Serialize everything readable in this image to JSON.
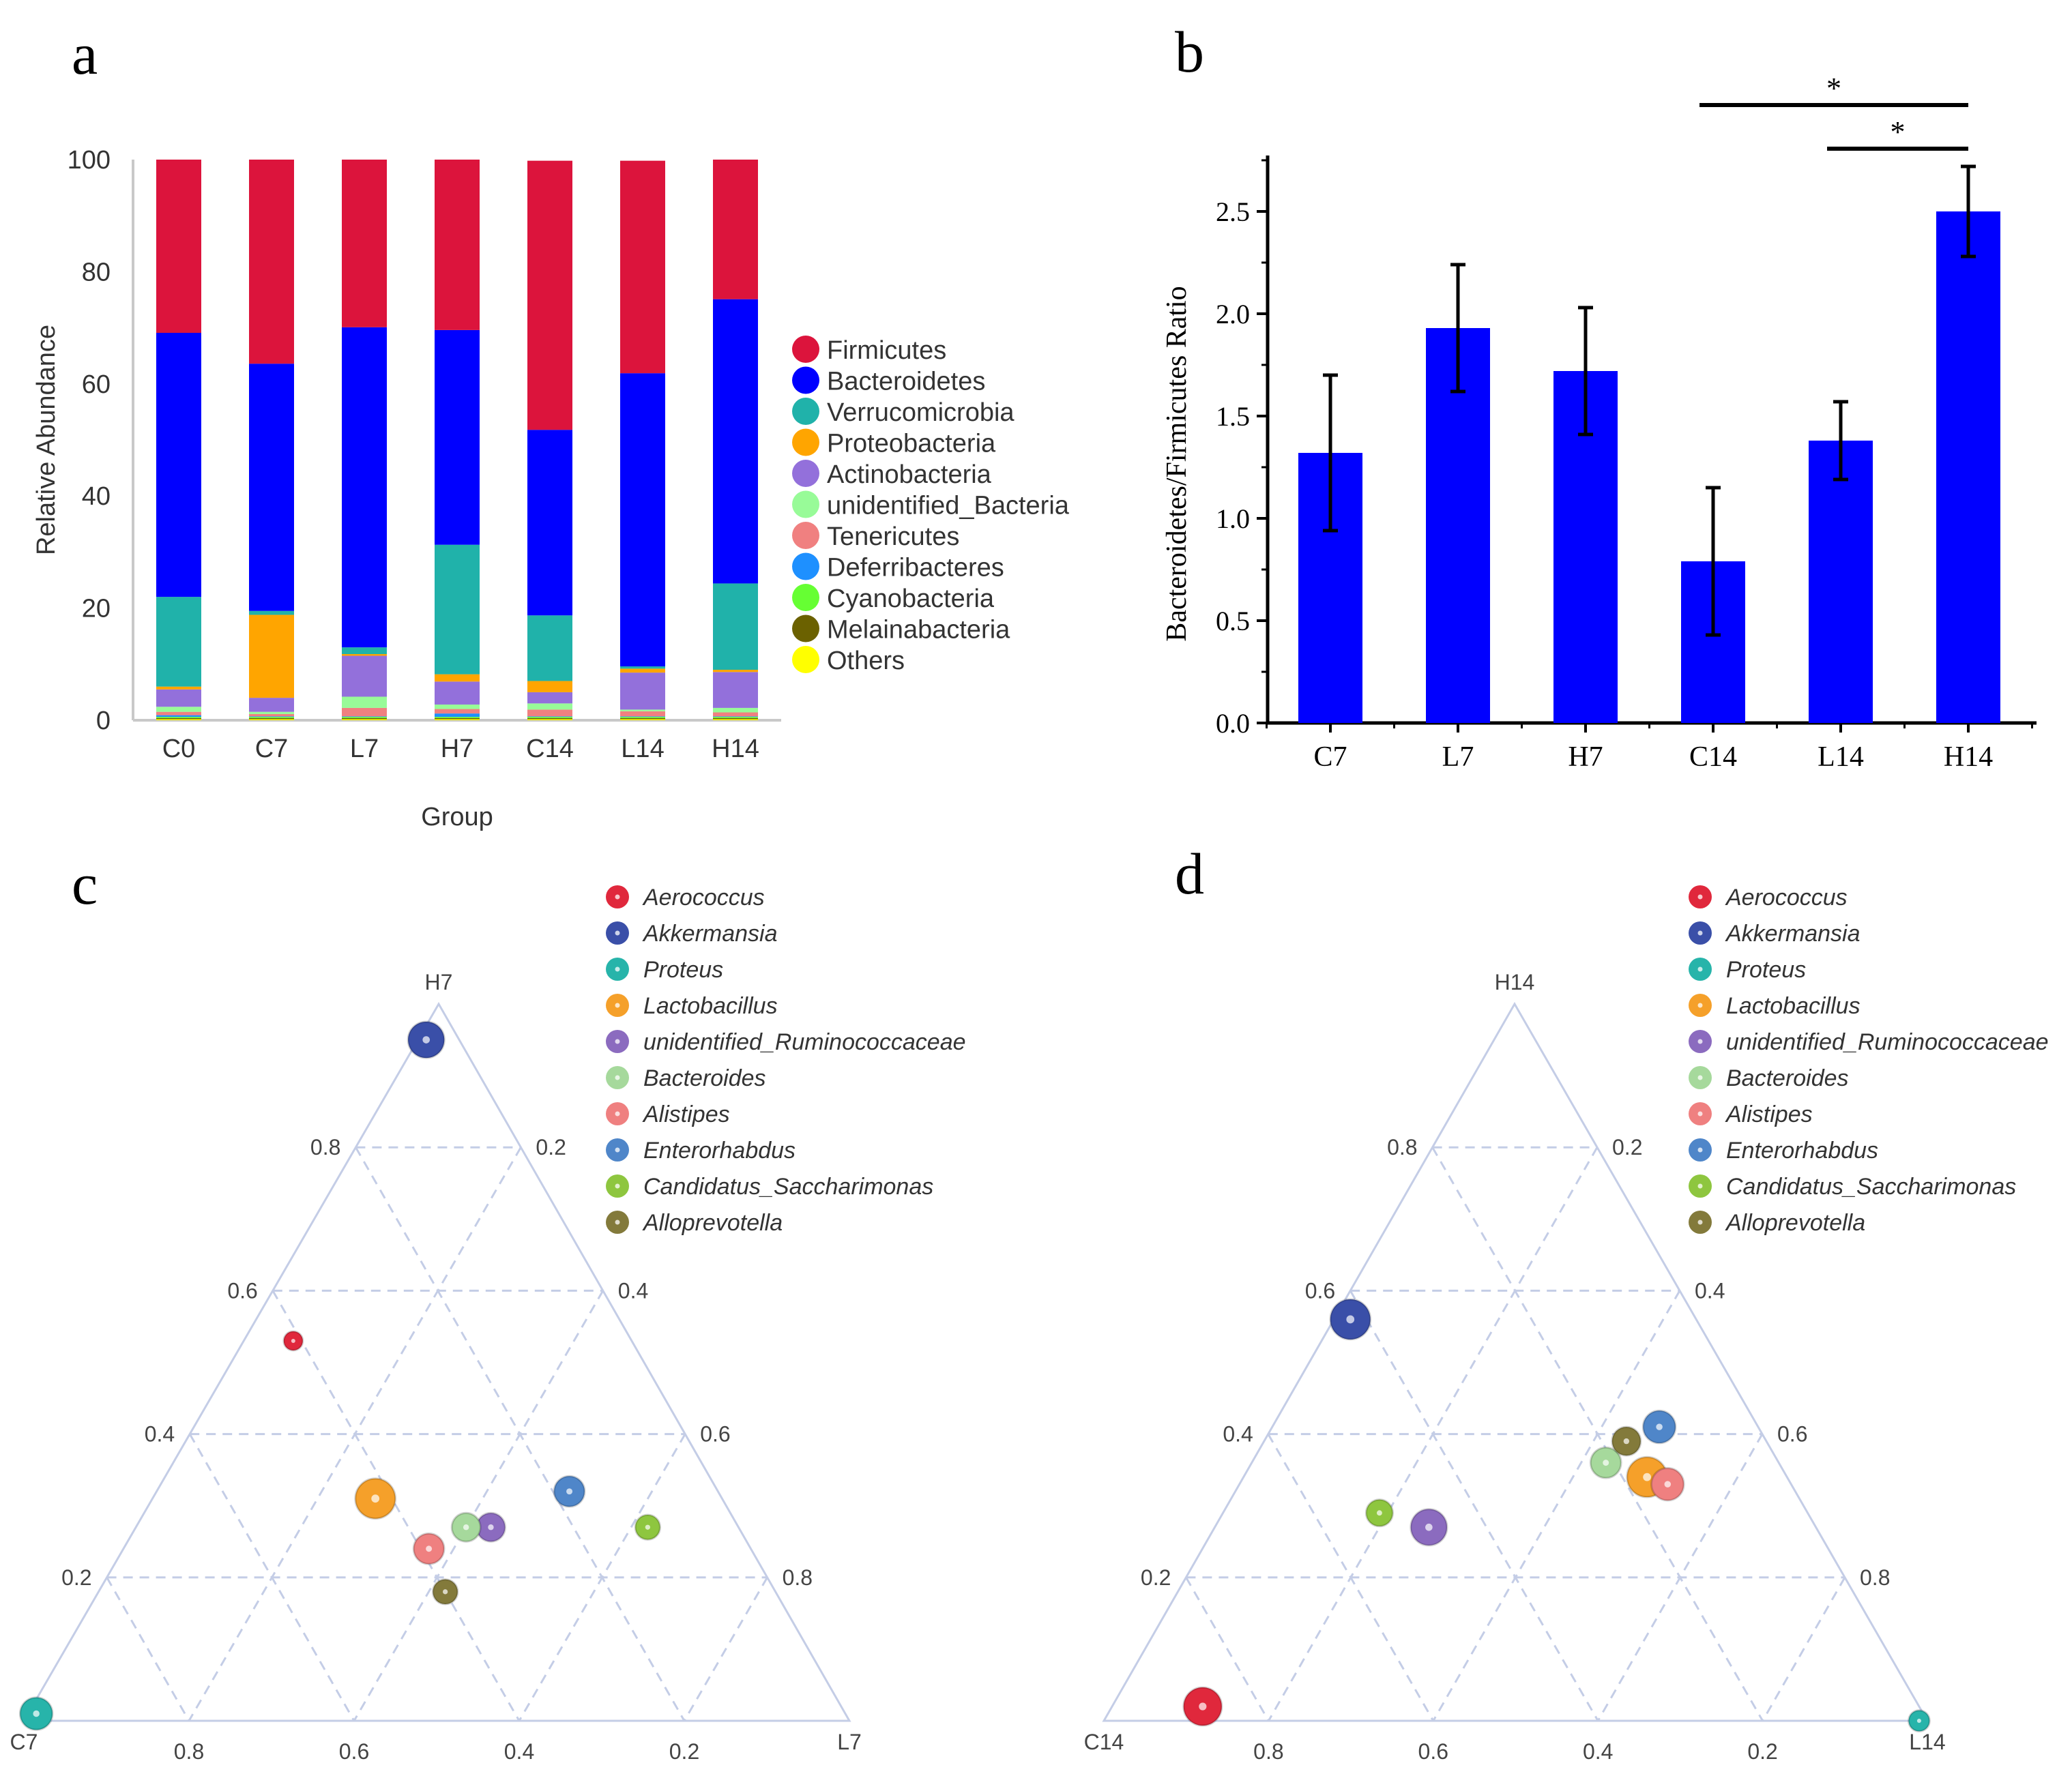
{
  "panels": {
    "a": {
      "letter": "a"
    },
    "b": {
      "letter": "b"
    },
    "c": {
      "letter": "c"
    },
    "d": {
      "letter": "d"
    }
  },
  "chart_data": [
    {
      "id": "a",
      "type": "bar",
      "stacked": true,
      "xlabel": "Group",
      "ylabel": "Relative Abundance",
      "ylim": [
        0,
        100
      ],
      "yticks": [
        0,
        20,
        40,
        60,
        80,
        100
      ],
      "categories": [
        "C0",
        "C7",
        "L7",
        "H7",
        "C14",
        "L14",
        "H14"
      ],
      "legend_position": "right",
      "series": [
        {
          "name": "Others",
          "color": "#ffff00",
          "values": [
            0.2,
            0.2,
            0.2,
            0.2,
            0.2,
            0.2,
            0.2
          ]
        },
        {
          "name": "Melainabacteria",
          "color": "#6b6100",
          "values": [
            0.2,
            0.2,
            0.2,
            0.2,
            0.2,
            0.2,
            0.2
          ]
        },
        {
          "name": "Cyanobacteria",
          "color": "#66ff33",
          "values": [
            0.2,
            0.2,
            0.2,
            0.2,
            0.2,
            0.2,
            0.2
          ]
        },
        {
          "name": "Deferribacteres",
          "color": "#1e90ff",
          "values": [
            0.3,
            0.1,
            0.1,
            0.6,
            0.1,
            0.1,
            0.1
          ]
        },
        {
          "name": "Tenericutes",
          "color": "#f08080",
          "values": [
            0.6,
            0.4,
            1.5,
            0.8,
            1.2,
            0.9,
            0.7
          ]
        },
        {
          "name": "unidentified_Bacteria",
          "color": "#98fb98",
          "values": [
            0.9,
            0.4,
            2.0,
            0.8,
            1.1,
            0.3,
            0.8
          ]
        },
        {
          "name": "Actinobacteria",
          "color": "#9370db",
          "values": [
            3.1,
            2.5,
            7.3,
            4.1,
            2.0,
            6.6,
            6.4
          ]
        },
        {
          "name": "Proteobacteria",
          "color": "#ffa500",
          "values": [
            0.5,
            14.8,
            0.3,
            1.3,
            2.0,
            0.7,
            0.4
          ]
        },
        {
          "name": "Verrucomicrobia",
          "color": "#20b2aa",
          "values": [
            16.0,
            0.7,
            1.2,
            23.1,
            11.7,
            0.4,
            15.4
          ]
        },
        {
          "name": "Bacteroidetes",
          "color": "#0000ff",
          "values": [
            47.1,
            44.1,
            57.1,
            38.3,
            33.1,
            52.3,
            50.7
          ]
        },
        {
          "name": "Firmicutes",
          "color": "#dc143c",
          "values": [
            30.9,
            36.4,
            29.9,
            30.4,
            48.0,
            37.9,
            24.9
          ]
        }
      ],
      "legend_order": [
        "Firmicutes",
        "Bacteroidetes",
        "Verrucomicrobia",
        "Proteobacteria",
        "Actinobacteria",
        "unidentified_Bacteria",
        "Tenericutes",
        "Deferribacteres",
        "Cyanobacteria",
        "Melainabacteria",
        "Others"
      ]
    },
    {
      "id": "b",
      "type": "bar",
      "ylabel": "Bacteroidetes/Firmicutes Ratio",
      "ylim": [
        0,
        2.8
      ],
      "yticks": [
        "0.0",
        "0.5",
        "1.0",
        "1.5",
        "2.0",
        "2.5"
      ],
      "categories": [
        "C7",
        "L7",
        "H7",
        "C14",
        "L14",
        "H14"
      ],
      "values": [
        1.32,
        1.93,
        1.72,
        0.79,
        1.38,
        2.5
      ],
      "errors": [
        0.38,
        0.31,
        0.31,
        0.36,
        0.19,
        0.22
      ],
      "bar_color": "#0000ff",
      "significance": [
        {
          "from": "C14",
          "to": "H14",
          "label": "*"
        },
        {
          "from": "L14",
          "to": "H14",
          "label": "*"
        }
      ]
    },
    {
      "id": "c",
      "type": "scatter",
      "subtype": "ternary",
      "corners": {
        "top": "H7",
        "left": "C7",
        "right": "L7"
      },
      "tick_labels": [
        "0.2",
        "0.4",
        "0.6",
        "0.8"
      ],
      "points": [
        {
          "genus": "Aerococcus",
          "color": "#e0283c",
          "H": 0.53,
          "C": 0.41,
          "L": 0.06,
          "size": 1.0
        },
        {
          "genus": "Akkermansia",
          "color": "#3a4fa8",
          "H": 0.95,
          "C": 0.04,
          "L": 0.01,
          "size": 1.9
        },
        {
          "genus": "Proteus",
          "color": "#27b4aa",
          "H": 0.01,
          "C": 0.98,
          "L": 0.01,
          "size": 1.7
        },
        {
          "genus": "Lactobacillus",
          "color": "#f5a02a",
          "H": 0.31,
          "C": 0.42,
          "L": 0.27,
          "size": 2.1
        },
        {
          "genus": "unidentified_Ruminococcaceae",
          "color": "#8b6bbf",
          "H": 0.27,
          "C": 0.3,
          "L": 0.43,
          "size": 1.5
        },
        {
          "genus": "Bacteroides",
          "color": "#a6d99c",
          "H": 0.27,
          "C": 0.33,
          "L": 0.4,
          "size": 1.5
        },
        {
          "genus": "Alistipes",
          "color": "#ef8080",
          "H": 0.24,
          "C": 0.39,
          "L": 0.37,
          "size": 1.6
        },
        {
          "genus": "Enterorhabdus",
          "color": "#4f86c9",
          "H": 0.32,
          "C": 0.18,
          "L": 0.5,
          "size": 1.6
        },
        {
          "genus": "Candidatus_Saccharimonas",
          "color": "#8ec63f",
          "H": 0.27,
          "C": 0.11,
          "L": 0.62,
          "size": 1.3
        },
        {
          "genus": "Alloprevotella",
          "color": "#837a3b",
          "H": 0.18,
          "C": 0.4,
          "L": 0.42,
          "size": 1.3
        }
      ]
    },
    {
      "id": "d",
      "type": "scatter",
      "subtype": "ternary",
      "corners": {
        "top": "H14",
        "left": "C14",
        "right": "L14"
      },
      "tick_labels": [
        "0.2",
        "0.4",
        "0.6",
        "0.8"
      ],
      "points": [
        {
          "genus": "Aerococcus",
          "color": "#e0283c",
          "H": 0.02,
          "C": 0.87,
          "L": 0.11,
          "size": 2.0
        },
        {
          "genus": "Akkermansia",
          "color": "#3a4fa8",
          "H": 0.56,
          "C": 0.42,
          "L": 0.02,
          "size": 2.1
        },
        {
          "genus": "Proteus",
          "color": "#27b4aa",
          "H": 0.0,
          "C": 0.01,
          "L": 0.99,
          "size": 1.1
        },
        {
          "genus": "Lactobacillus",
          "color": "#f5a02a",
          "H": 0.34,
          "C": 0.17,
          "L": 0.49,
          "size": 2.1
        },
        {
          "genus": "unidentified_Ruminococcaceae",
          "color": "#8b6bbf",
          "H": 0.27,
          "C": 0.47,
          "L": 0.26,
          "size": 1.9
        },
        {
          "genus": "Bacteroides",
          "color": "#a6d99c",
          "H": 0.36,
          "C": 0.21,
          "L": 0.43,
          "size": 1.6
        },
        {
          "genus": "Alistipes",
          "color": "#ef8080",
          "H": 0.33,
          "C": 0.15,
          "L": 0.52,
          "size": 1.7
        },
        {
          "genus": "Enterorhabdus",
          "color": "#4f86c9",
          "H": 0.41,
          "C": 0.12,
          "L": 0.47,
          "size": 1.7
        },
        {
          "genus": "Candidatus_Saccharimonas",
          "color": "#8ec63f",
          "H": 0.29,
          "C": 0.52,
          "L": 0.19,
          "size": 1.4
        },
        {
          "genus": "Alloprevotella",
          "color": "#837a3b",
          "H": 0.39,
          "C": 0.17,
          "L": 0.44,
          "size": 1.5
        }
      ]
    }
  ]
}
